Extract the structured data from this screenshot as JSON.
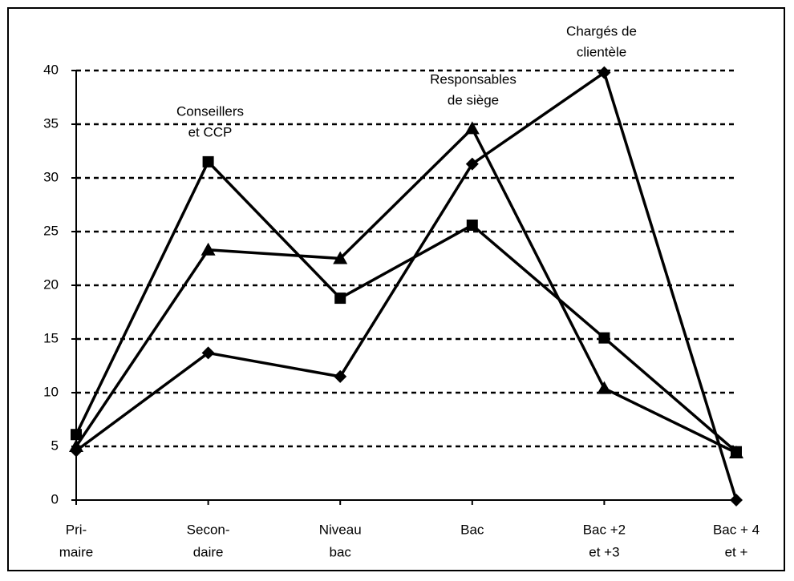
{
  "chart_data": {
    "type": "line",
    "categories": [
      [
        "Pri-",
        "maire"
      ],
      [
        "Secon-",
        "daire"
      ],
      [
        "Niveau",
        "bac"
      ],
      [
        "Bac"
      ],
      [
        "Bac +2",
        "et +3"
      ],
      [
        "Bac + 4",
        "et +"
      ]
    ],
    "series": [
      {
        "name": [
          "Conseillers",
          "et CCP"
        ],
        "marker": "square",
        "color": "#000000",
        "values": [
          6.1,
          31.5,
          18.8,
          25.6,
          15.1,
          4.5
        ]
      },
      {
        "name": [
          "Responsables",
          "de siège"
        ],
        "marker": "triangle",
        "color": "#000000",
        "values": [
          5.0,
          23.3,
          22.5,
          34.6,
          10.4,
          4.4
        ]
      },
      {
        "name": [
          "Chargés de",
          "clientèle"
        ],
        "marker": "diamond",
        "color": "#000000",
        "values": [
          4.6,
          13.7,
          11.5,
          31.3,
          39.8,
          0
        ]
      }
    ],
    "ylim": [
      0,
      40
    ],
    "yticks": [
      0,
      5,
      10,
      15,
      20,
      25,
      30,
      35,
      40
    ],
    "grid": true
  }
}
